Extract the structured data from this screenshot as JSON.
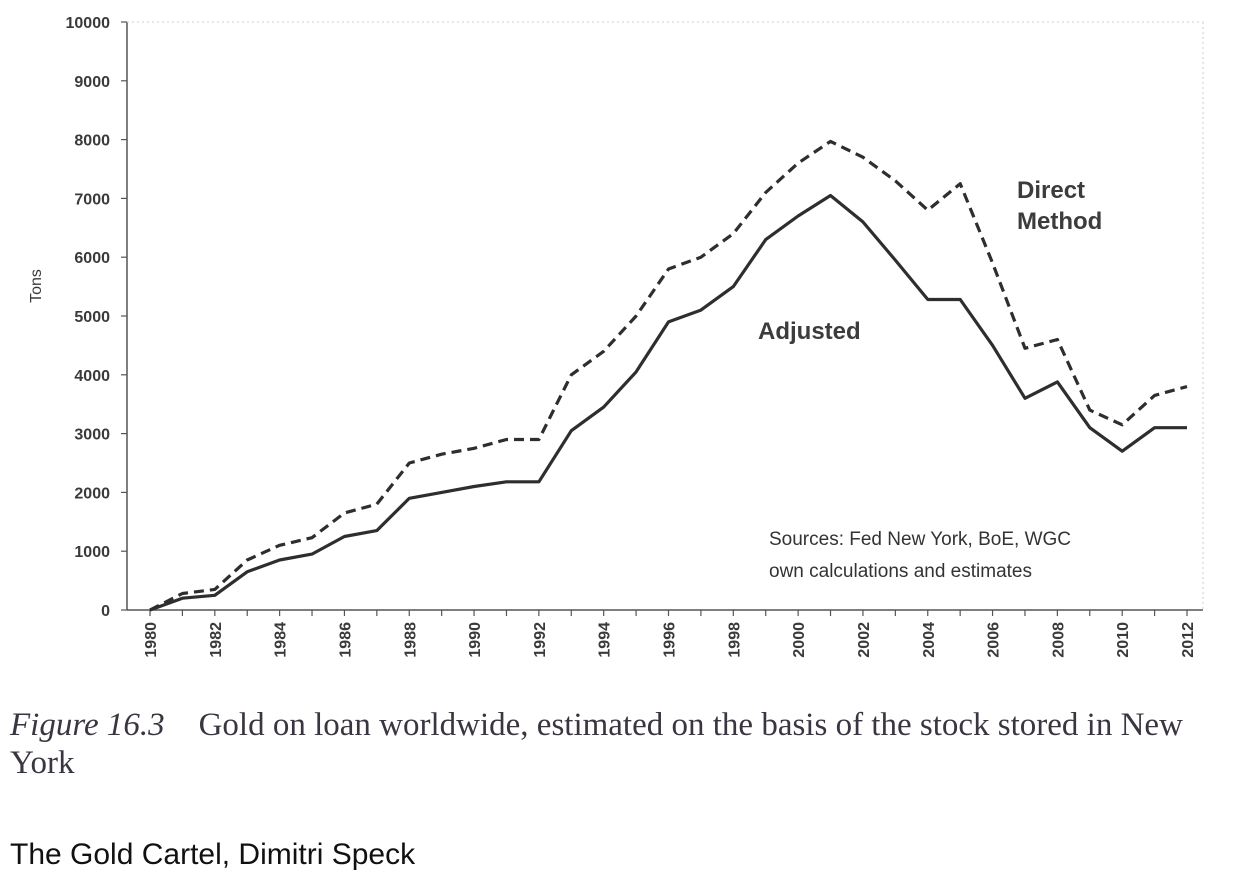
{
  "chart_data": {
    "type": "line",
    "ylabel": "Tons",
    "ylim": [
      0,
      10000
    ],
    "y_ticks": [
      "0",
      "1000",
      "2000",
      "3000",
      "4000",
      "5000",
      "6000",
      "7000",
      "8000",
      "9000",
      "10000"
    ],
    "x_ticks": [
      "1980",
      "1982",
      "1984",
      "1986",
      "1988",
      "1990",
      "1992",
      "1994",
      "1996",
      "1998",
      "2000",
      "2002",
      "2004",
      "2006",
      "2008",
      "2010",
      "2012"
    ],
    "x": [
      1980,
      1981,
      1982,
      1983,
      1984,
      1985,
      1986,
      1987,
      1988,
      1989,
      1990,
      1991,
      1992,
      1993,
      1994,
      1995,
      1996,
      1997,
      1998,
      1999,
      2000,
      2001,
      2002,
      2003,
      2004,
      2005,
      2006,
      2007,
      2008,
      2009,
      2010,
      2011,
      2012
    ],
    "series": [
      {
        "name": "Direct Method",
        "style": "dashed",
        "values": [
          0,
          280,
          350,
          850,
          1100,
          1230,
          1650,
          1800,
          2500,
          2650,
          2750,
          2900,
          2900,
          4000,
          4400,
          5000,
          5800,
          6000,
          6400,
          7100,
          7600,
          7970,
          7700,
          7300,
          6800,
          7250,
          5900,
          4450,
          4600,
          3400,
          3150,
          3650,
          3800
        ]
      },
      {
        "name": "Adjusted",
        "style": "solid",
        "values": [
          0,
          200,
          250,
          650,
          850,
          950,
          1250,
          1350,
          1900,
          2000,
          2100,
          2180,
          2180,
          3050,
          3450,
          4050,
          4900,
          5100,
          5500,
          6300,
          6700,
          7050,
          6600,
          5950,
          5280,
          5280,
          4500,
          3600,
          3880,
          3100,
          2700,
          3100,
          3100
        ]
      }
    ],
    "annotations": {
      "direct_method": [
        "Direct",
        "Method"
      ],
      "adjusted": "Adjusted",
      "sources": [
        "Sources: Fed New York, BoE, WGC",
        "own calculations and estimates"
      ]
    },
    "grid": false,
    "line_color": "#2e2e2e"
  },
  "caption": {
    "figure_label": "Figure 16.3",
    "text": "Gold on loan worldwide, estimated on the basis of the stock stored in New York"
  },
  "credit": "The Gold Cartel, Dimitri Speck"
}
